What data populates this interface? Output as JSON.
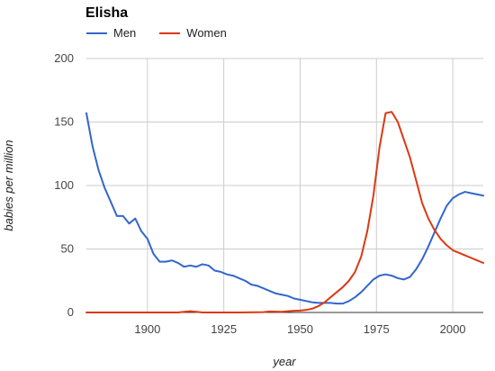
{
  "chart_data": {
    "type": "line",
    "title": "Elisha",
    "xlabel": "year",
    "ylabel": "babies per million",
    "xlim": [
      1880,
      2010
    ],
    "ylim": [
      0,
      200
    ],
    "x_ticks": [
      1900,
      1925,
      1950,
      1975,
      2000
    ],
    "y_ticks": [
      0,
      50,
      100,
      150,
      200
    ],
    "grid": true,
    "legend_position": "top-left",
    "series": [
      {
        "name": "Men",
        "color": "#3366cc",
        "points": [
          [
            1880,
            157
          ],
          [
            1882,
            131
          ],
          [
            1884,
            112
          ],
          [
            1886,
            98
          ],
          [
            1888,
            87
          ],
          [
            1890,
            76
          ],
          [
            1892,
            76
          ],
          [
            1894,
            70
          ],
          [
            1896,
            74
          ],
          [
            1898,
            64
          ],
          [
            1900,
            58
          ],
          [
            1902,
            46
          ],
          [
            1904,
            40
          ],
          [
            1906,
            40
          ],
          [
            1908,
            41
          ],
          [
            1910,
            39
          ],
          [
            1912,
            36
          ],
          [
            1914,
            37
          ],
          [
            1916,
            36
          ],
          [
            1918,
            38
          ],
          [
            1920,
            37
          ],
          [
            1922,
            33
          ],
          [
            1924,
            32
          ],
          [
            1926,
            30
          ],
          [
            1928,
            29
          ],
          [
            1930,
            27
          ],
          [
            1932,
            25
          ],
          [
            1934,
            22
          ],
          [
            1936,
            21
          ],
          [
            1938,
            19
          ],
          [
            1940,
            17
          ],
          [
            1942,
            15
          ],
          [
            1944,
            14
          ],
          [
            1946,
            13
          ],
          [
            1948,
            11
          ],
          [
            1950,
            10
          ],
          [
            1952,
            9
          ],
          [
            1954,
            8
          ],
          [
            1956,
            7.5
          ],
          [
            1958,
            7.5
          ],
          [
            1960,
            7.5
          ],
          [
            1962,
            7
          ],
          [
            1964,
            7
          ],
          [
            1966,
            9
          ],
          [
            1968,
            12
          ],
          [
            1970,
            16
          ],
          [
            1972,
            21
          ],
          [
            1974,
            26
          ],
          [
            1976,
            29
          ],
          [
            1978,
            30
          ],
          [
            1980,
            29
          ],
          [
            1982,
            27
          ],
          [
            1984,
            26
          ],
          [
            1986,
            28
          ],
          [
            1988,
            34
          ],
          [
            1990,
            42
          ],
          [
            1992,
            52
          ],
          [
            1994,
            63
          ],
          [
            1996,
            74
          ],
          [
            1998,
            84
          ],
          [
            2000,
            90
          ],
          [
            2002,
            93
          ],
          [
            2004,
            95
          ],
          [
            2006,
            94
          ],
          [
            2008,
            93
          ],
          [
            2010,
            92
          ]
        ]
      },
      {
        "name": "Women",
        "color": "#dc3912",
        "points": [
          [
            1880,
            0
          ],
          [
            1890,
            0
          ],
          [
            1900,
            0
          ],
          [
            1910,
            0
          ],
          [
            1912,
            0.5
          ],
          [
            1914,
            1
          ],
          [
            1916,
            0.5
          ],
          [
            1918,
            0
          ],
          [
            1930,
            0
          ],
          [
            1938,
            0.3
          ],
          [
            1940,
            0.8
          ],
          [
            1944,
            0.5
          ],
          [
            1946,
            1
          ],
          [
            1948,
            1.3
          ],
          [
            1950,
            1.5
          ],
          [
            1952,
            2
          ],
          [
            1954,
            3
          ],
          [
            1956,
            5
          ],
          [
            1958,
            8
          ],
          [
            1960,
            12
          ],
          [
            1962,
            16
          ],
          [
            1964,
            20
          ],
          [
            1966,
            25
          ],
          [
            1968,
            32
          ],
          [
            1970,
            44
          ],
          [
            1972,
            64
          ],
          [
            1974,
            92
          ],
          [
            1976,
            130
          ],
          [
            1978,
            157
          ],
          [
            1980,
            158
          ],
          [
            1982,
            150
          ],
          [
            1984,
            136
          ],
          [
            1986,
            122
          ],
          [
            1988,
            104
          ],
          [
            1990,
            86
          ],
          [
            1992,
            74
          ],
          [
            1994,
            65
          ],
          [
            1996,
            58
          ],
          [
            1998,
            53
          ],
          [
            2000,
            49
          ],
          [
            2002,
            47
          ],
          [
            2004,
            45
          ],
          [
            2006,
            43
          ],
          [
            2008,
            41
          ],
          [
            2010,
            39
          ]
        ]
      }
    ]
  }
}
